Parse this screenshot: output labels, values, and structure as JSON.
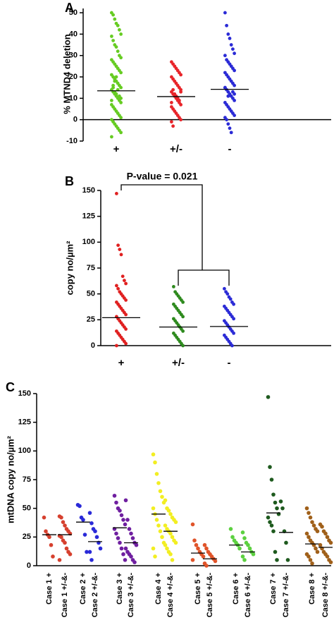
{
  "chart_data": [
    {
      "type": "strip",
      "label": "A",
      "ylabel": "% MTND4 deletion",
      "ylim": [
        -10,
        52
      ],
      "yticks": [
        -10,
        0,
        10,
        20,
        30,
        40,
        50
      ],
      "groups": [
        {
          "name": "+",
          "color": "#66cc22",
          "mean": 13.5,
          "values": [
            50,
            49,
            47,
            45,
            44,
            42,
            40,
            39,
            37,
            35,
            34,
            32,
            30,
            29,
            28,
            27,
            26,
            25,
            24,
            23,
            22,
            21,
            20,
            19,
            18,
            17,
            16,
            15,
            14,
            13,
            12,
            11,
            10,
            9,
            8,
            7,
            6,
            5,
            4,
            3,
            2,
            1,
            0,
            -1,
            -2,
            -3,
            -4,
            -5,
            -6,
            -8,
            15,
            13,
            12,
            14,
            11,
            10,
            9,
            16,
            18,
            20
          ]
        },
        {
          "name": "+/-",
          "color": "#e8252a",
          "mean": 10.8,
          "values": [
            27,
            26,
            25,
            24,
            23,
            22,
            21,
            20,
            19,
            18,
            17,
            16,
            15,
            14,
            13,
            12,
            11,
            10,
            9,
            8,
            7,
            6,
            5,
            4,
            3,
            2,
            1,
            0,
            -1,
            -3,
            12,
            11,
            10,
            9,
            13,
            8,
            14
          ]
        },
        {
          "name": "-",
          "color": "#2b2bd6",
          "mean": 14.2,
          "values": [
            50,
            44,
            40,
            38,
            35,
            33,
            31,
            30,
            28,
            27,
            26,
            25,
            24,
            23,
            22,
            21,
            20,
            19,
            18,
            17,
            16,
            15,
            14,
            13,
            12,
            11,
            10,
            9,
            8,
            7,
            6,
            5,
            4,
            3,
            2,
            1,
            0,
            -2,
            -4,
            -6,
            13,
            12,
            15,
            14,
            11
          ]
        }
      ]
    },
    {
      "type": "strip",
      "label": "B",
      "ylabel": "copy no/µm²",
      "ylim": [
        0,
        150
      ],
      "yticks": [
        0,
        25,
        50,
        75,
        100,
        125,
        150
      ],
      "annotation": "P-value = 0.021",
      "groups": [
        {
          "name": "+",
          "color": "#e02020",
          "mean": 27,
          "values": [
            147,
            97,
            93,
            88,
            67,
            63,
            60,
            58,
            55,
            52,
            50,
            48,
            46,
            44,
            42,
            40,
            38,
            36,
            34,
            32,
            30,
            28,
            26,
            24,
            22,
            20,
            18,
            16,
            14,
            12,
            10,
            8,
            6,
            4,
            2,
            0
          ]
        },
        {
          "name": "+/-",
          "color": "#2e8a1e",
          "mean": 18,
          "values": [
            57,
            52,
            50,
            48,
            46,
            44,
            42,
            40,
            38,
            36,
            34,
            32,
            30,
            28,
            26,
            24,
            22,
            20,
            18,
            16,
            14,
            12,
            10,
            8,
            6,
            4,
            2,
            0
          ]
        },
        {
          "name": "-",
          "color": "#2b2bd6",
          "mean": 18.5,
          "values": [
            55,
            52,
            50,
            47,
            45,
            42,
            40,
            38,
            36,
            34,
            32,
            30,
            28,
            26,
            24,
            22,
            20,
            18,
            16,
            14,
            12,
            10,
            8,
            6,
            4,
            2,
            0
          ]
        }
      ]
    },
    {
      "type": "strip",
      "label": "C",
      "ylabel": "mtDNA copy no/µm²",
      "ylim": [
        0,
        150
      ],
      "yticks": [
        0,
        25,
        50,
        75,
        100,
        125,
        150
      ],
      "groups": [
        {
          "name": "Case 1 +",
          "color": "#d6402e",
          "mean": 27,
          "values": [
            42,
            30,
            27,
            25,
            18,
            8
          ]
        },
        {
          "name": "Case 1 +/-&-",
          "color": "#d6402e",
          "mean": 27,
          "values": [
            43,
            42,
            38,
            35,
            32,
            30,
            28,
            26,
            25,
            22,
            20,
            15,
            12,
            10,
            5
          ]
        },
        {
          "name": "Case 2 +",
          "color": "#2a2ad8",
          "mean": 38,
          "values": [
            53,
            52,
            42,
            40,
            27,
            12
          ]
        },
        {
          "name": "Case 2 +/-&-",
          "color": "#2a2ad8",
          "mean": 21,
          "values": [
            46,
            37,
            32,
            30,
            25,
            20,
            15,
            12,
            5
          ]
        },
        {
          "name": "Case 3 +",
          "color": "#6f1fa0",
          "mean": 33,
          "values": [
            61,
            55,
            50,
            48,
            44,
            40,
            36,
            32,
            28,
            24,
            20,
            15,
            10,
            5
          ]
        },
        {
          "name": "Case 3 +/-&-",
          "color": "#6f1fa0",
          "mean": 20,
          "values": [
            57,
            40,
            32,
            28,
            24,
            20,
            18,
            15,
            12,
            10,
            8,
            5,
            3
          ]
        },
        {
          "name": "Case 4 +",
          "color": "#f2ee22",
          "mean": 45,
          "values": [
            97,
            90,
            80,
            72,
            65,
            60,
            55,
            50,
            45,
            40,
            35,
            30,
            25,
            20,
            15,
            8
          ]
        },
        {
          "name": "Case 4 +/-&-",
          "color": "#f2ee22",
          "mean": 30,
          "values": [
            57,
            50,
            48,
            45,
            42,
            40,
            38,
            35,
            32,
            30,
            28,
            25,
            22,
            20,
            18,
            15,
            12,
            10,
            5
          ]
        },
        {
          "name": "Case 5 +",
          "color": "#e0542a",
          "mean": 11,
          "values": [
            36,
            22,
            18,
            15,
            12,
            10,
            8,
            5
          ]
        },
        {
          "name": "Case 5 +/-&-",
          "color": "#e0542a",
          "mean": 6,
          "values": [
            18,
            15,
            12,
            10,
            8,
            6,
            4,
            2,
            0
          ]
        },
        {
          "name": "Case 6 +",
          "color": "#5cd040",
          "mean": 18,
          "values": [
            32,
            25,
            22,
            20,
            18,
            15
          ]
        },
        {
          "name": "Case 6 +/-&-",
          "color": "#5cd040",
          "mean": 12,
          "values": [
            29,
            24,
            20,
            18,
            15,
            12,
            10,
            8,
            5
          ]
        },
        {
          "name": "Case 7 +",
          "color": "#1e5a1e",
          "mean": 46,
          "values": [
            147,
            86,
            75,
            62,
            55,
            50,
            45,
            42,
            38,
            35,
            30,
            12,
            5
          ]
        },
        {
          "name": "Case 7 +/-&-",
          "color": "#1e5a1e",
          "mean": 29,
          "values": [
            56,
            50,
            30,
            20,
            5
          ]
        },
        {
          "name": "Case 8 +",
          "color": "#a0601a",
          "mean": 19,
          "values": [
            50,
            46,
            42,
            38,
            35,
            32,
            30,
            28,
            25,
            22,
            20,
            18,
            15,
            12,
            10,
            8,
            5,
            2
          ]
        },
        {
          "name": "Case 8 +/-&-",
          "color": "#a0601a",
          "mean": 16,
          "values": [
            36,
            34,
            30,
            28,
            25,
            22,
            20,
            18,
            15,
            12,
            10,
            8,
            5,
            3
          ]
        }
      ]
    }
  ]
}
